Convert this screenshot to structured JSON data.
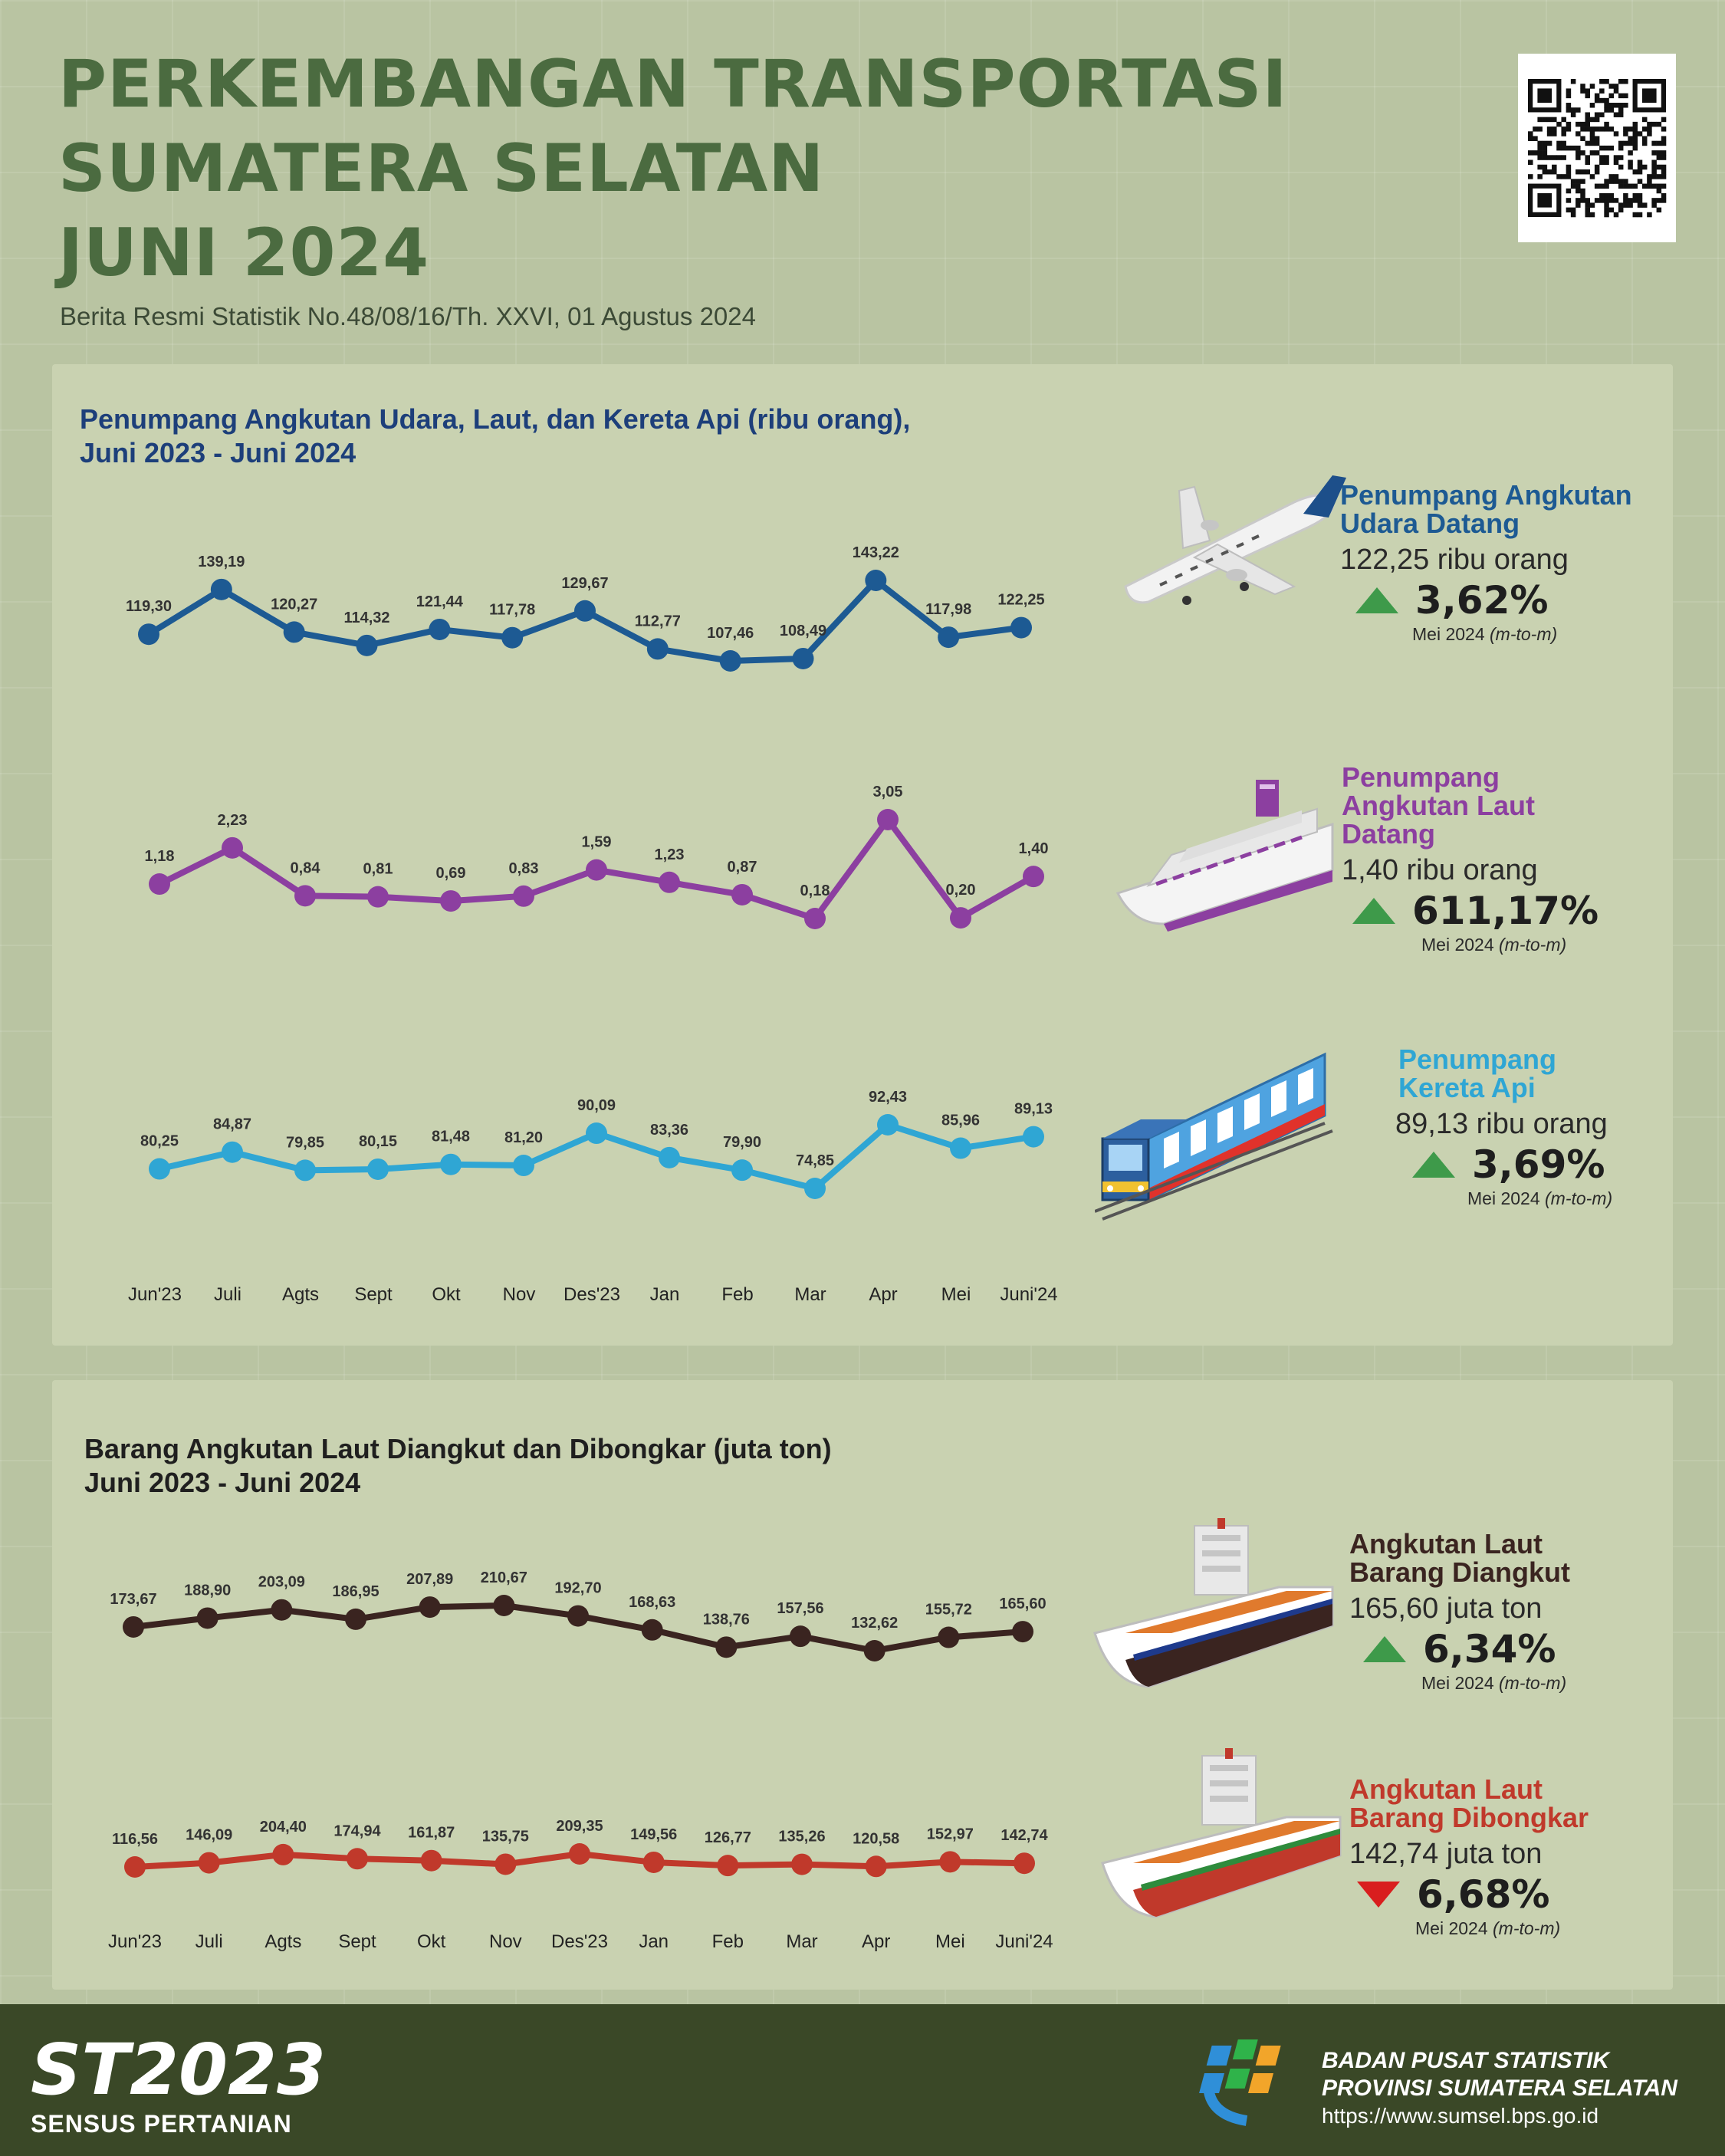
{
  "header": {
    "title_lines": [
      "PERKEMBANGAN TRANSPORTASI",
      "SUMATERA SELATAN",
      "JUNI 2024"
    ],
    "subtitle": "Berita Resmi Statistik No.48/08/16/Th. XXVI, 01 Agustus 2024"
  },
  "passenger_section": {
    "title_line1": "Penumpang Angkutan Udara, Laut, dan Kereta Api (ribu orang),",
    "title_line2": "Juni 2023 - Juni 2024",
    "title_color": "#1d3f7a",
    "air": {
      "title_line1": "Penumpang Angkutan",
      "title_line2": "Udara Datang",
      "color": "#1d5a93",
      "value": "122,25 ribu orang",
      "change": "3,62%",
      "direction": "up",
      "note": "Mei 2024",
      "note_italic": "(m-to-m)",
      "icon": "airplane-icon"
    },
    "sea": {
      "title_line1": "Penumpang",
      "title_line2": "Angkutan Laut",
      "title_line3": "Datang",
      "color": "#8c3fa0",
      "value": "1,40 ribu orang",
      "change": "611,17%",
      "direction": "up",
      "note": "Mei 2024",
      "note_italic": "(m-to-m)",
      "icon": "passenger-ship-icon"
    },
    "rail": {
      "title_line1": "Penumpang",
      "title_line2": "Kereta Api",
      "color": "#2fa6d4",
      "value": "89,13 ribu orang",
      "change": "3,69%",
      "direction": "up",
      "note": "Mei 2024",
      "note_italic": "(m-to-m)",
      "icon": "train-icon"
    }
  },
  "goods_section": {
    "title_line1": "Barang Angkutan Laut Diangkut dan Dibongkar (juta ton)",
    "title_line2": "Juni 2023 - Juni 2024",
    "title_color": "#1f1f1f",
    "loaded": {
      "title_line1": "Angkutan Laut",
      "title_line2": "Barang Diangkut",
      "color": "#3a2420",
      "value": "165,60 juta ton",
      "change": "6,34%",
      "direction": "up",
      "note": "Mei 2024",
      "note_italic": "(m-to-m)",
      "icon": "cargo-ship-icon"
    },
    "unloaded": {
      "title_line1": "Angkutan Laut",
      "title_line2": "Barang Dibongkar",
      "color": "#c0392b",
      "value": "142,74 juta ton",
      "change": "6,68%",
      "direction": "down",
      "note": "Mei 2024",
      "note_italic": "(m-to-m)",
      "icon": "cargo-ship-icon"
    }
  },
  "chart_data": [
    {
      "type": "line",
      "categories": [
        "Jun'23",
        "Juli",
        "Agts",
        "Sept",
        "Okt",
        "Nov",
        "Des'23",
        "Jan",
        "Feb",
        "Mar",
        "Apr",
        "Mei",
        "Juni'24"
      ],
      "series": [
        {
          "values": [
            119.3,
            139.19,
            120.27,
            114.32,
            121.44,
            117.78,
            129.67,
            112.77,
            107.46,
            108.49,
            143.22,
            117.98,
            122.25
          ],
          "labels": [
            "119,30",
            "139,19",
            "120,27",
            "114,32",
            "121,44",
            "117,78",
            "129,67",
            "112,77",
            "107,46",
            "108,49",
            "143,22",
            "117,98",
            "122,25"
          ],
          "color": "#1d5a93"
        },
        {
          "values": [
            1.18,
            2.23,
            0.84,
            0.81,
            0.69,
            0.83,
            1.59,
            1.23,
            0.87,
            0.18,
            3.05,
            0.2,
            1.4
          ],
          "labels": [
            "1,18",
            "2,23",
            "0,84",
            "0,81",
            "0,69",
            "0,83",
            "1,59",
            "1,23",
            "0,87",
            "0,18",
            "3,05",
            "0,20",
            "1,40"
          ],
          "color": "#8c3fa0"
        },
        {
          "values": [
            80.25,
            84.87,
            79.85,
            80.15,
            81.48,
            81.2,
            90.09,
            83.36,
            79.9,
            74.85,
            92.43,
            85.96,
            89.13
          ],
          "labels": [
            "80,25",
            "84,87",
            "79,85",
            "80,15",
            "81,48",
            "81,20",
            "90,09",
            "83,36",
            "79,90",
            "74,85",
            "92,43",
            "85,96",
            "89,13"
          ],
          "color": "#2fa6d4"
        }
      ]
    },
    {
      "type": "line",
      "categories": [
        "Jun'23",
        "Juli",
        "Agts",
        "Sept",
        "Okt",
        "Nov",
        "Des'23",
        "Jan",
        "Feb",
        "Mar",
        "Apr",
        "Mei",
        "Juni'24"
      ],
      "series": [
        {
          "values": [
            173.67,
            188.9,
            203.09,
            186.95,
            207.89,
            210.67,
            192.7,
            168.63,
            138.76,
            157.56,
            132.62,
            155.72,
            165.6
          ],
          "labels": [
            "173,67",
            "188,90",
            "203,09",
            "186,95",
            "207,89",
            "210,67",
            "192,70",
            "168,63",
            "138,76",
            "157,56",
            "132,62",
            "155,72",
            "165,60"
          ],
          "color": "#3a2420"
        },
        {
          "values": [
            116.56,
            146.09,
            204.4,
            174.94,
            161.87,
            135.75,
            209.35,
            149.56,
            126.77,
            135.26,
            120.58,
            152.97,
            142.74
          ],
          "labels": [
            "116,56",
            "146,09",
            "204,40",
            "174,94",
            "161,87",
            "135,75",
            "209,35",
            "149,56",
            "126,77",
            "135,26",
            "120,58",
            "152,97",
            "142,74"
          ],
          "color": "#c0392b"
        }
      ]
    }
  ],
  "footer": {
    "st_logo_text": "ST2023",
    "st_caption": "SENSUS PERTANIAN",
    "org_line1": "BADAN PUSAT STATISTIK",
    "org_line2": "PROVINSI SUMATERA SELATAN",
    "website": "https://www.sumsel.bps.go.id"
  }
}
